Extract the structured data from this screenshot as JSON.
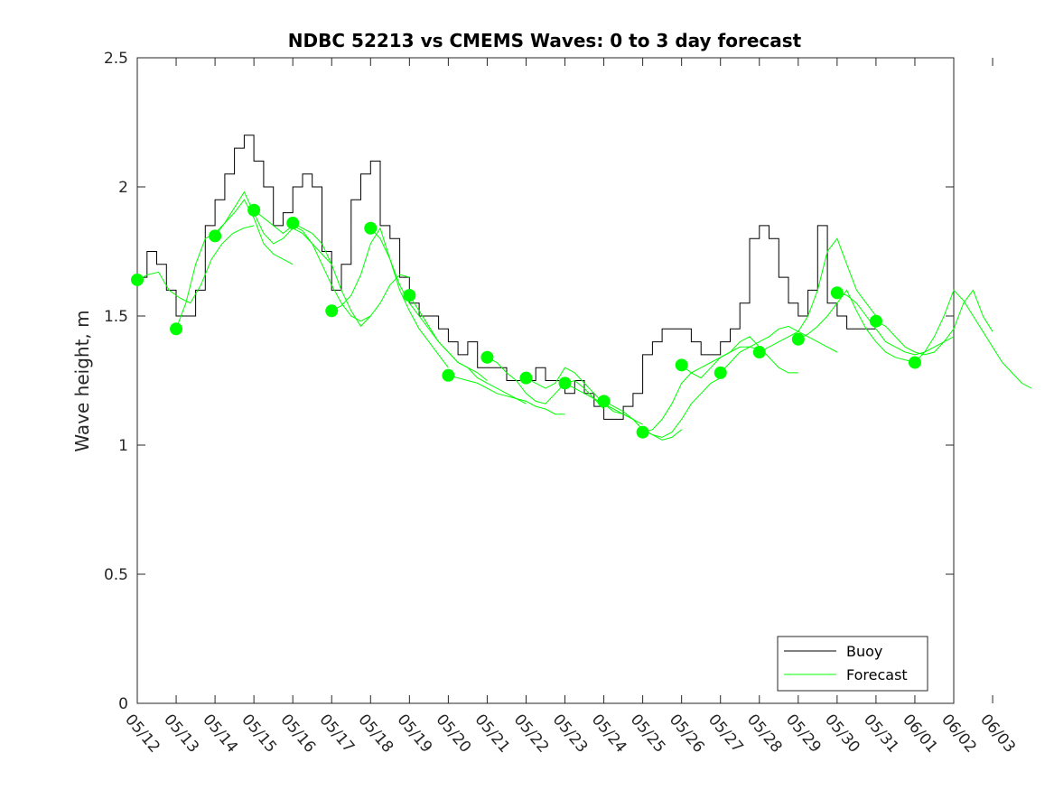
{
  "chart_data": {
    "type": "line",
    "title": "NDBC 52213 vs CMEMS Waves: 0 to 3 day forecast",
    "xlabel": "",
    "ylabel": "Wave height, m",
    "ylim": [
      0,
      2.5
    ],
    "yticks": [
      "0",
      "0.5",
      "1",
      "1.5",
      "2",
      "2.5"
    ],
    "xlim": [
      0,
      21
    ],
    "xtick_labels": [
      "05/12",
      "05/13",
      "05/14",
      "05/15",
      "05/16",
      "05/17",
      "05/18",
      "05/19",
      "05/20",
      "05/21",
      "05/22",
      "05/23",
      "05/24",
      "05/25",
      "05/26",
      "05/27",
      "05/28",
      "05/29",
      "05/30",
      "05/31",
      "06/01",
      "06/02",
      "06/03"
    ],
    "legend": {
      "position": "bottom-right",
      "entries": [
        "Buoy",
        "Forecast"
      ]
    },
    "colors": {
      "buoy": "#000000",
      "forecast": "#00ff00",
      "axis": "#262626"
    },
    "buoy": {
      "name": "Buoy",
      "day": [
        0,
        0.25,
        0.5,
        0.75,
        1,
        1.25,
        1.5,
        1.75,
        2,
        2.25,
        2.5,
        2.75,
        3,
        3.25,
        3.5,
        3.75,
        4,
        4.25,
        4.5,
        4.75,
        5,
        5.25,
        5.5,
        5.75,
        6,
        6.25,
        6.5,
        6.75,
        7,
        7.25,
        7.5,
        7.75,
        8,
        8.25,
        8.5,
        8.75,
        9,
        9.25,
        9.5,
        9.75,
        10,
        10.25,
        10.5,
        10.75,
        11,
        11.25,
        11.5,
        11.75,
        12,
        12.25,
        12.5,
        12.75,
        13,
        13.25,
        13.5,
        13.75,
        14,
        14.25,
        14.5,
        14.75,
        15,
        15.25,
        15.5,
        15.75,
        16,
        16.25,
        16.5,
        16.75,
        17,
        17.25,
        17.5,
        17.75,
        18,
        18.25,
        18.5,
        18.75,
        19,
        19.25,
        19.5,
        19.75,
        20,
        20.25,
        20.5,
        20.75,
        21
      ],
      "values": [
        1.65,
        1.75,
        1.7,
        1.6,
        1.5,
        1.5,
        1.6,
        1.85,
        1.95,
        2.05,
        2.15,
        2.2,
        2.1,
        2.0,
        1.85,
        1.9,
        2.0,
        2.05,
        2.0,
        1.75,
        1.6,
        1.7,
        1.95,
        2.05,
        2.1,
        1.85,
        1.8,
        1.65,
        1.55,
        1.5,
        1.5,
        1.45,
        1.4,
        1.35,
        1.4,
        1.3,
        1.3,
        1.3,
        1.25,
        1.25,
        1.25,
        1.3,
        1.25,
        1.25,
        1.2,
        1.25,
        1.2,
        1.15,
        1.1,
        1.1,
        1.15,
        1.2,
        1.35,
        1.4,
        1.45,
        1.45,
        1.45,
        1.4,
        1.35,
        1.35,
        1.4,
        1.45,
        1.55,
        1.8,
        1.85,
        1.8,
        1.65,
        1.55,
        1.5,
        1.6,
        1.85,
        1.55,
        1.5,
        1.45,
        1.45,
        1.45,
        1.45,
        null,
        null,
        null,
        null,
        null,
        null,
        null,
        null
      ]
    },
    "forecast": {
      "name": "Forecast",
      "runs": [
        {
          "start": 0,
          "values": [
            1.64,
            1.66,
            1.67,
            1.6,
            1.57,
            1.55,
            1.62,
            1.72,
            1.78,
            1.82,
            1.84,
            1.85
          ]
        },
        {
          "start": 1,
          "values": [
            1.45,
            1.55,
            1.7,
            1.8,
            1.82,
            1.86,
            1.9,
            1.95,
            1.88,
            1.78,
            1.74,
            1.72,
            1.7
          ]
        },
        {
          "start": 2,
          "values": [
            1.81,
            1.86,
            1.92,
            1.98,
            1.9,
            1.82,
            1.78,
            1.8,
            1.84,
            1.82,
            1.78,
            1.74,
            1.7
          ]
        },
        {
          "start": 3,
          "values": [
            1.91,
            1.88,
            1.85,
            1.82,
            1.85,
            1.83,
            1.78,
            1.7,
            1.62,
            1.55,
            1.5,
            1.48,
            1.5
          ]
        },
        {
          "start": 4,
          "values": [
            1.86,
            1.84,
            1.82,
            1.78,
            1.7,
            1.6,
            1.52,
            1.46,
            1.5,
            1.55,
            1.62,
            1.66,
            1.65
          ]
        },
        {
          "start": 5,
          "values": [
            1.52,
            1.54,
            1.58,
            1.66,
            1.78,
            1.84,
            1.72,
            1.6,
            1.52,
            1.45,
            1.4,
            1.35,
            1.3
          ]
        },
        {
          "start": 6,
          "values": [
            1.84,
            1.8,
            1.72,
            1.62,
            1.55,
            1.5,
            1.45,
            1.4,
            1.36,
            1.32,
            1.3,
            1.28,
            1.25
          ]
        },
        {
          "start": 7,
          "values": [
            1.58,
            1.52,
            1.46,
            1.4,
            1.36,
            1.32,
            1.3,
            1.26,
            1.24,
            1.22,
            1.2,
            1.18,
            1.16
          ]
        },
        {
          "start": 8,
          "values": [
            1.27,
            1.26,
            1.25,
            1.24,
            1.22,
            1.2,
            1.19,
            1.18,
            1.17,
            1.15,
            1.14,
            1.12,
            1.12
          ]
        },
        {
          "start": 9,
          "values": [
            1.34,
            1.32,
            1.28,
            1.25,
            1.2,
            1.17,
            1.16,
            1.2,
            1.24,
            1.25,
            1.22,
            1.18,
            1.14
          ]
        },
        {
          "start": 10,
          "values": [
            1.26,
            1.24,
            1.22,
            1.24,
            1.3,
            1.28,
            1.24,
            1.2,
            1.16,
            1.13,
            1.12,
            1.1,
            1.08
          ]
        },
        {
          "start": 11,
          "values": [
            1.24,
            1.22,
            1.2,
            1.18,
            1.16,
            1.14,
            1.12,
            1.1,
            1.06,
            1.04,
            1.02,
            1.03,
            1.06
          ]
        },
        {
          "start": 12,
          "values": [
            1.17,
            1.15,
            1.13,
            1.1,
            1.06,
            1.04,
            1.03,
            1.05,
            1.1,
            1.16,
            1.2,
            1.24,
            1.26
          ]
        },
        {
          "start": 13,
          "values": [
            1.05,
            1.06,
            1.1,
            1.16,
            1.24,
            1.28,
            1.3,
            1.32,
            1.34,
            1.36,
            1.38,
            1.38,
            1.37
          ]
        },
        {
          "start": 14,
          "values": [
            1.31,
            1.28,
            1.26,
            1.3,
            1.34,
            1.36,
            1.4,
            1.42,
            1.38,
            1.34,
            1.3,
            1.28,
            1.28
          ]
        },
        {
          "start": 15,
          "values": [
            1.28,
            1.32,
            1.36,
            1.38,
            1.4,
            1.42,
            1.45,
            1.46,
            1.44,
            1.42,
            1.4,
            1.38,
            1.36
          ]
        },
        {
          "start": 16,
          "values": [
            1.36,
            1.38,
            1.4,
            1.42,
            1.44,
            1.5,
            1.6,
            1.75,
            1.8,
            1.7,
            1.6,
            1.55,
            1.5
          ]
        },
        {
          "start": 17,
          "values": [
            1.41,
            1.43,
            1.46,
            1.5,
            1.55,
            1.6,
            1.52,
            1.45,
            1.4,
            1.36,
            1.34,
            1.33,
            1.32
          ]
        },
        {
          "start": 18,
          "values": [
            1.59,
            1.58,
            1.55,
            1.5,
            1.45,
            1.4,
            1.38,
            1.36,
            1.35,
            1.36,
            1.38,
            1.4,
            1.42
          ]
        },
        {
          "start": 19,
          "values": [
            1.48,
            1.46,
            1.42,
            1.38,
            1.36,
            1.35,
            1.36,
            1.4,
            1.45,
            1.55,
            1.6,
            1.5,
            1.44
          ]
        },
        {
          "start": 20,
          "values": [
            1.32,
            1.36,
            1.42,
            1.5,
            1.6,
            1.56,
            1.5,
            1.44,
            1.38,
            1.32,
            1.28,
            1.24,
            1.22
          ]
        }
      ]
    }
  }
}
